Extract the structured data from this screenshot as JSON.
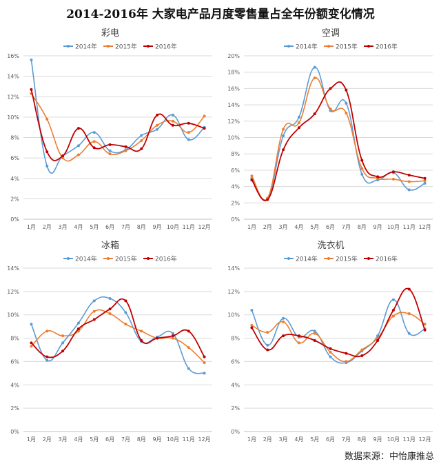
{
  "title": "2014-2016年 大家电产品月度零售量占全年份额变化情况",
  "source": "数据来源：中怡康推总",
  "colors": {
    "2014年": "#5b9bd5",
    "2015年": "#ed7d31",
    "2016年": "#c00000",
    "grid": "#d9d9d9",
    "axis": "#bfbfbf"
  },
  "chart_data": [
    {
      "type": "line",
      "title": "彩电",
      "categories": [
        "1月",
        "2月",
        "3月",
        "4月",
        "5月",
        "6月",
        "7月",
        "8月",
        "9月",
        "10月",
        "11月",
        "12月"
      ],
      "ylim": [
        0,
        16
      ],
      "yticks": [
        "0%",
        "2%",
        "4%",
        "6%",
        "8%",
        "10%",
        "12%",
        "14%",
        "16%"
      ],
      "series": [
        {
          "name": "2014年",
          "values": [
            15.6,
            5.2,
            6.2,
            7.2,
            8.5,
            6.7,
            6.8,
            8.2,
            8.8,
            10.2,
            7.8,
            9.0
          ]
        },
        {
          "name": "2015年",
          "values": [
            12.3,
            9.8,
            6.0,
            6.3,
            7.6,
            6.4,
            6.7,
            7.7,
            9.2,
            9.6,
            8.5,
            10.1
          ]
        },
        {
          "name": "2016年",
          "values": [
            12.7,
            6.6,
            6.2,
            8.9,
            7.0,
            7.3,
            7.1,
            6.9,
            10.2,
            9.2,
            9.4,
            8.9
          ]
        }
      ]
    },
    {
      "type": "line",
      "title": "空调",
      "categories": [
        "1月",
        "2月",
        "3月",
        "4月",
        "5月",
        "6月",
        "7月",
        "8月",
        "9月",
        "10月",
        "11月",
        "12月"
      ],
      "ylim": [
        0,
        20
      ],
      "yticks": [
        "0%",
        "2%",
        "4%",
        "6%",
        "8%",
        "10%",
        "12%",
        "14%",
        "16%",
        "18%",
        "20%"
      ],
      "series": [
        {
          "name": "2014年",
          "values": [
            5.0,
            2.5,
            10.2,
            12.5,
            18.6,
            13.3,
            14.2,
            5.5,
            4.8,
            5.7,
            3.6,
            4.4
          ]
        },
        {
          "name": "2015年",
          "values": [
            5.3,
            2.6,
            11.0,
            11.8,
            17.3,
            13.5,
            13.0,
            6.2,
            5.0,
            4.9,
            4.6,
            4.7
          ]
        },
        {
          "name": "2016年",
          "values": [
            4.8,
            2.4,
            8.5,
            11.2,
            12.9,
            16.0,
            15.8,
            7.2,
            5.2,
            5.8,
            5.4,
            5.0
          ]
        }
      ]
    },
    {
      "type": "line",
      "title": "冰箱",
      "categories": [
        "1月",
        "2月",
        "3月",
        "4月",
        "5月",
        "6月",
        "7月",
        "8月",
        "9月",
        "10月",
        "11月",
        "12月"
      ],
      "ylim": [
        0,
        14
      ],
      "yticks": [
        "0%",
        "2%",
        "4%",
        "6%",
        "8%",
        "10%",
        "12%",
        "14%"
      ],
      "series": [
        {
          "name": "2014年",
          "values": [
            9.2,
            6.1,
            7.6,
            9.3,
            11.2,
            11.4,
            10.2,
            7.7,
            8.1,
            8.4,
            5.4,
            5.0
          ]
        },
        {
          "name": "2015年",
          "values": [
            7.3,
            8.6,
            8.2,
            8.6,
            10.3,
            10.1,
            9.2,
            8.6,
            8.0,
            8.0,
            7.2,
            5.9
          ]
        },
        {
          "name": "2016年",
          "values": [
            7.6,
            6.4,
            6.9,
            8.8,
            9.6,
            10.5,
            11.2,
            7.8,
            8.0,
            8.2,
            8.6,
            6.4
          ]
        }
      ]
    },
    {
      "type": "line",
      "title": "洗衣机",
      "categories": [
        "1月",
        "2月",
        "3月",
        "4月",
        "5月",
        "6月",
        "7月",
        "8月",
        "9月",
        "10月",
        "11月",
        "12月"
      ],
      "ylim": [
        0,
        14
      ],
      "yticks": [
        "0%",
        "2%",
        "4%",
        "6%",
        "8%",
        "10%",
        "12%",
        "14%"
      ],
      "series": [
        {
          "name": "2014年",
          "values": [
            10.4,
            7.4,
            9.7,
            8.1,
            8.6,
            6.4,
            5.9,
            6.9,
            8.2,
            11.3,
            8.4,
            8.8
          ]
        },
        {
          "name": "2015年",
          "values": [
            9.1,
            8.5,
            9.4,
            7.6,
            8.4,
            6.8,
            6.0,
            7.0,
            8.0,
            9.9,
            10.1,
            9.2
          ]
        },
        {
          "name": "2016年",
          "values": [
            8.9,
            7.0,
            8.2,
            8.2,
            7.8,
            7.1,
            6.7,
            6.5,
            7.8,
            10.4,
            12.2,
            8.7
          ]
        }
      ]
    }
  ]
}
